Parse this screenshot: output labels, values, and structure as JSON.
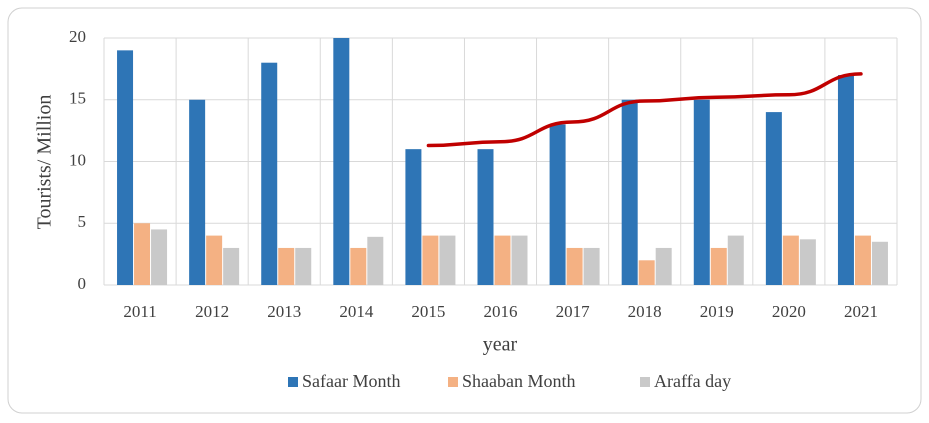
{
  "chart_data": {
    "type": "bar",
    "x_label": "year",
    "y_label": "Tourists/ Million",
    "categories": [
      "2011",
      "2012",
      "2013",
      "2014",
      "2015",
      "2016",
      "2017",
      "2018",
      "2019",
      "2020",
      "2021"
    ],
    "series": [
      {
        "name": "Safaar Month",
        "color": "#2e75b6",
        "values": [
          19,
          15,
          18,
          20,
          11,
          11,
          13,
          15,
          15,
          14,
          17
        ]
      },
      {
        "name": "Shaaban Month",
        "color": "#f4b183",
        "values": [
          5,
          4,
          3,
          3,
          4,
          4,
          3,
          2,
          3,
          4,
          4
        ]
      },
      {
        "name": "Araffa day",
        "color": "#c9c9c9",
        "values": [
          4.5,
          3,
          3,
          3.9,
          4,
          4,
          3,
          3,
          4,
          3.7,
          3.5
        ]
      }
    ],
    "trend": {
      "type": "line",
      "color": "#c00000",
      "values": [
        null,
        null,
        null,
        null,
        11.3,
        11.6,
        13.2,
        14.9,
        15.2,
        15.4,
        17.1
      ]
    },
    "ylim": [
      0,
      20
    ],
    "yticks": [
      0,
      5,
      10,
      15,
      20
    ],
    "grid": true,
    "legend": "bottom"
  }
}
